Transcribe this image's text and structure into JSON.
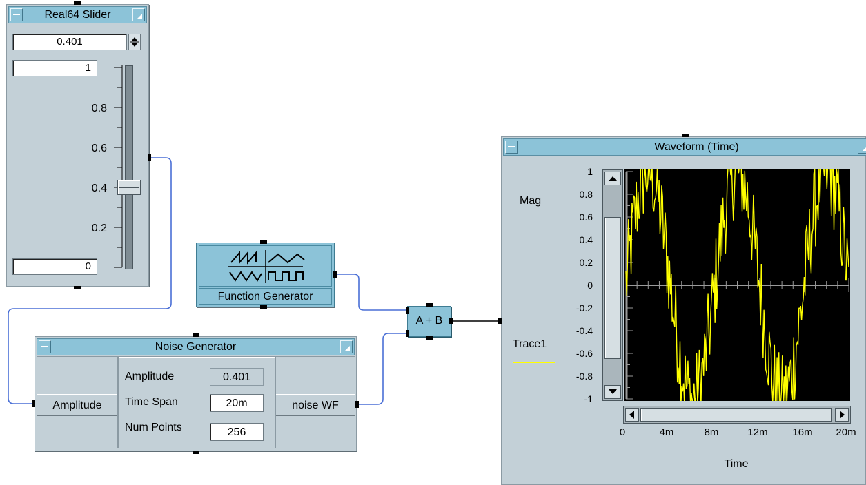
{
  "slider": {
    "title": "Real64 Slider",
    "value": "0.401",
    "max": "1",
    "min": "0",
    "ticks": [
      "0.8",
      "0.6",
      "0.4",
      "0.2"
    ],
    "level": 0.401
  },
  "function_generator": {
    "label": "Function Generator"
  },
  "adder": {
    "label": "A + B"
  },
  "noise": {
    "title": "Noise Generator",
    "input_label": "Amplitude",
    "output_label": "noise WF",
    "amplitude_label": "Amplitude",
    "amplitude_value": "0.401",
    "timespan_label": "Time Span",
    "timespan_value": "20m",
    "numpoints_label": "Num Points",
    "numpoints_value": "256"
  },
  "waveform": {
    "title": "Waveform (Time)",
    "mag_label": "Mag",
    "trace_label": "Trace1",
    "xlabel": "Time",
    "ytick_labels": [
      "1",
      "0.8",
      "0.6",
      "0.4",
      "0.2",
      "0",
      "-0.2",
      "-0.4",
      "-0.6",
      "-0.8",
      "-1"
    ],
    "xtick_labels": [
      "0",
      "4m",
      "8m",
      "12m",
      "16m",
      "20m"
    ],
    "trace_color": "#ffff00",
    "plot_background": "#000000"
  },
  "colors": {
    "panel": "#c3d0d7",
    "titlebar": "#8cc3d8",
    "wire": "#4a6fd6"
  }
}
